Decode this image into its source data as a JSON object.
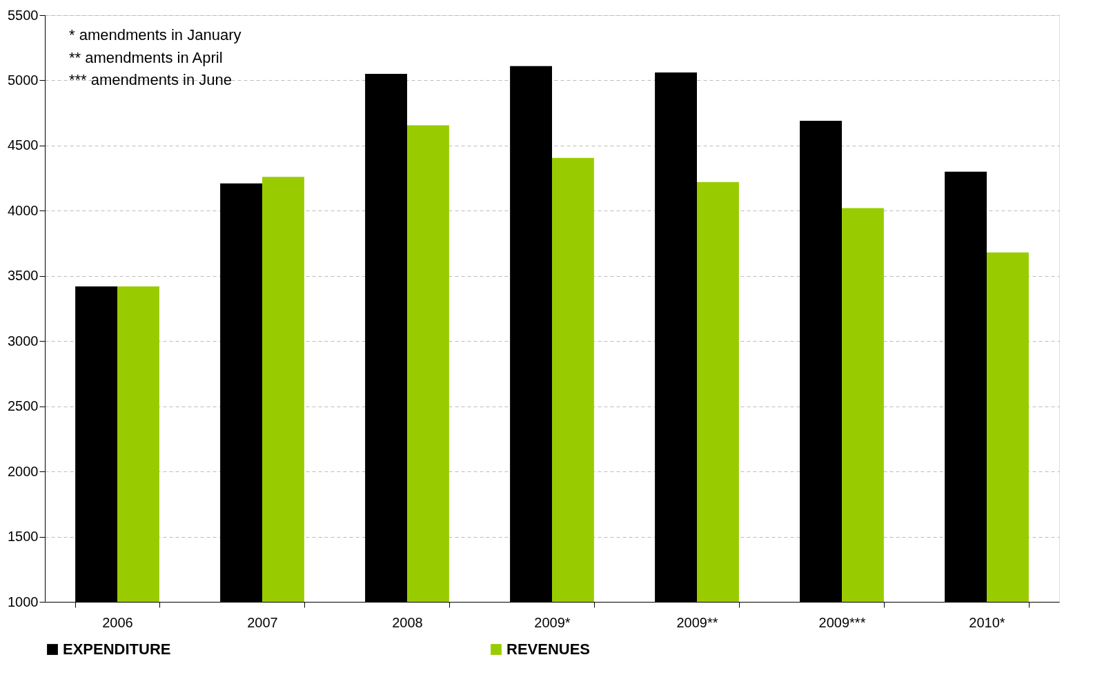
{
  "chart_data": {
    "type": "bar",
    "categories": [
      "2006",
      "2007",
      "2008",
      "2009*",
      "2009**",
      "2009***",
      "2010*"
    ],
    "series": [
      {
        "name": "EXPENDITURE",
        "color": "#000000",
        "values": [
          3420,
          4210,
          5050,
          5110,
          5060,
          4690,
          4300
        ]
      },
      {
        "name": "REVENUES",
        "color": "#99cc00",
        "values": [
          3420,
          4260,
          4655,
          4405,
          4220,
          4020,
          3680
        ]
      }
    ],
    "ylim": [
      1000,
      5500
    ],
    "yticks": [
      1000,
      1500,
      2000,
      2500,
      3000,
      3500,
      4000,
      4500,
      5000,
      5500
    ],
    "grid": "y",
    "legend": "bottom",
    "annotations": [
      "* amendments in January",
      "** amendments in April",
      "*** amendments in June"
    ]
  }
}
